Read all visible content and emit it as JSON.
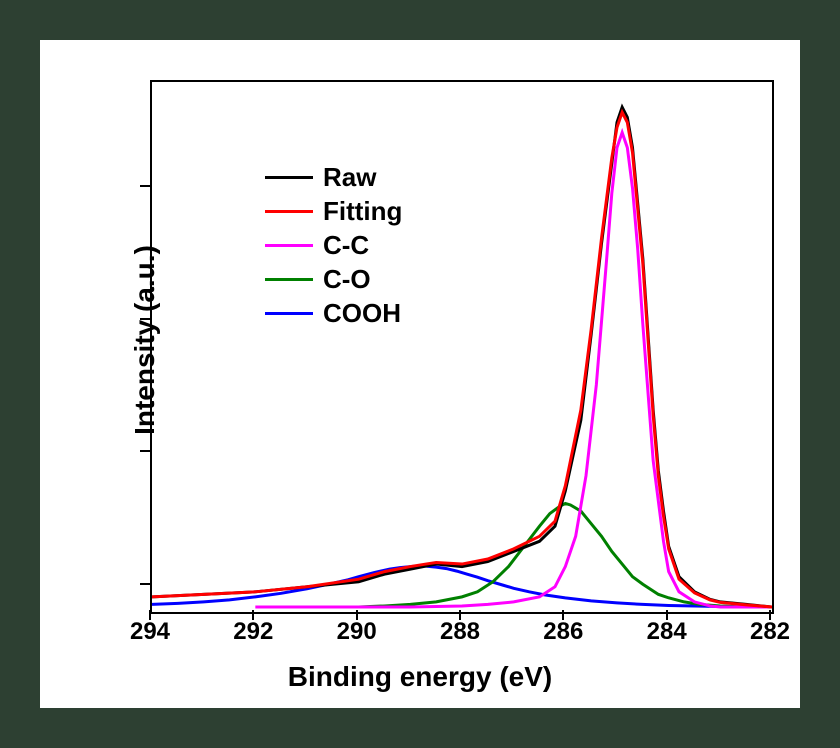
{
  "chart": {
    "type": "line",
    "background_color": "#ffffff",
    "page_background": "#2d4032",
    "xlabel": "Binding energy (eV)",
    "ylabel": "Intensity (a.u.)",
    "label_fontsize": 28,
    "label_fontweight": "bold",
    "tick_fontsize": 24,
    "tick_fontweight": "bold",
    "xlim": [
      294,
      282
    ],
    "xtick_step": 2,
    "xticks": [
      294,
      292,
      290,
      288,
      286,
      284,
      282
    ],
    "ylim": [
      0,
      1.05
    ],
    "yticks_relative": [
      0.05,
      0.3,
      0.55,
      0.8
    ],
    "x_axis_reversed": true,
    "border_color": "#000000",
    "border_width": 2,
    "line_width": 3,
    "legend": {
      "position": "upper-left-inset",
      "fontsize": 26,
      "fontweight": "bold",
      "items": [
        {
          "label": "Raw",
          "color": "#000000"
        },
        {
          "label": "Fitting",
          "color": "#ff0000"
        },
        {
          "label": "C-C",
          "color": "#ff00ff"
        },
        {
          "label": "C-O",
          "color": "#008000"
        },
        {
          "label": "COOH",
          "color": "#0000ff"
        }
      ]
    },
    "series": {
      "raw": {
        "color": "#000000",
        "x": [
          294,
          293,
          292,
          291,
          290,
          289.5,
          289,
          288.5,
          288,
          287.5,
          287,
          286.5,
          286.2,
          286,
          285.7,
          285.5,
          285.3,
          285.1,
          285,
          284.9,
          284.8,
          284.7,
          284.5,
          284.3,
          284.2,
          284.1,
          284,
          283.8,
          283.5,
          283.2,
          283,
          282.5,
          282
        ],
        "y": [
          0.03,
          0.035,
          0.04,
          0.05,
          0.06,
          0.075,
          0.085,
          0.095,
          0.09,
          0.1,
          0.12,
          0.14,
          0.17,
          0.24,
          0.38,
          0.55,
          0.73,
          0.89,
          0.97,
          1.0,
          0.98,
          0.92,
          0.7,
          0.4,
          0.28,
          0.2,
          0.13,
          0.07,
          0.04,
          0.025,
          0.02,
          0.015,
          0.01
        ]
      },
      "fitting": {
        "color": "#ff0000",
        "x": [
          294,
          293,
          292,
          291,
          290,
          289.5,
          289,
          288.7,
          288.5,
          288,
          287.5,
          287,
          286.5,
          286.2,
          286,
          285.7,
          285.5,
          285.3,
          285.1,
          285,
          284.9,
          284.8,
          284.7,
          284.5,
          284.3,
          284.2,
          284.1,
          284,
          283.8,
          283.5,
          283.2,
          283,
          282.5,
          282
        ],
        "y": [
          0.03,
          0.035,
          0.04,
          0.05,
          0.065,
          0.08,
          0.09,
          0.095,
          0.098,
          0.095,
          0.105,
          0.125,
          0.15,
          0.18,
          0.25,
          0.4,
          0.56,
          0.74,
          0.9,
          0.96,
          0.99,
          0.97,
          0.91,
          0.69,
          0.39,
          0.27,
          0.19,
          0.125,
          0.065,
          0.038,
          0.024,
          0.019,
          0.014,
          0.01
        ]
      },
      "cc": {
        "color": "#ff00ff",
        "peak_center": 284.9,
        "x": [
          292,
          291,
          290,
          289,
          288,
          287.5,
          287,
          286.5,
          286.2,
          286,
          285.8,
          285.6,
          285.4,
          285.2,
          285.1,
          285.0,
          284.9,
          284.8,
          284.7,
          284.6,
          284.5,
          284.3,
          284.1,
          284.0,
          283.8,
          283.5,
          283.2,
          283,
          282.5,
          282
        ],
        "y": [
          0.01,
          0.01,
          0.01,
          0.01,
          0.012,
          0.015,
          0.02,
          0.03,
          0.05,
          0.09,
          0.15,
          0.27,
          0.45,
          0.7,
          0.83,
          0.92,
          0.95,
          0.92,
          0.84,
          0.72,
          0.57,
          0.3,
          0.14,
          0.08,
          0.04,
          0.02,
          0.012,
          0.01,
          0.01,
          0.01
        ]
      },
      "co": {
        "color": "#008000",
        "peak_center": 286.0,
        "x": [
          290,
          289.5,
          289,
          288.5,
          288,
          287.7,
          287.4,
          287.1,
          286.8,
          286.5,
          286.3,
          286.1,
          286.0,
          285.9,
          285.7,
          285.5,
          285.3,
          285.1,
          284.9,
          284.7,
          284.5,
          284.2,
          284,
          283.7,
          283.4,
          283,
          282.5,
          282
        ],
        "y": [
          0.01,
          0.012,
          0.015,
          0.02,
          0.03,
          0.04,
          0.06,
          0.09,
          0.13,
          0.17,
          0.195,
          0.21,
          0.215,
          0.212,
          0.2,
          0.175,
          0.15,
          0.12,
          0.095,
          0.07,
          0.055,
          0.035,
          0.028,
          0.02,
          0.015,
          0.012,
          0.01,
          0.01
        ]
      },
      "cooh": {
        "color": "#0000ff",
        "peak_center": 288.7,
        "x": [
          294,
          293.5,
          293,
          292.5,
          292,
          291.5,
          291,
          290.5,
          290.2,
          290,
          289.7,
          289.4,
          289.2,
          289,
          288.9,
          288.8,
          288.7,
          288.6,
          288.5,
          288.3,
          288.1,
          287.9,
          287.7,
          287.5,
          287.2,
          287,
          286.7,
          286.4,
          286,
          285.5,
          285,
          284.5,
          284,
          283.5,
          283,
          282.5,
          282
        ],
        "y": [
          0.015,
          0.017,
          0.02,
          0.024,
          0.03,
          0.037,
          0.046,
          0.057,
          0.064,
          0.07,
          0.078,
          0.085,
          0.088,
          0.09,
          0.091,
          0.091,
          0.091,
          0.09,
          0.089,
          0.086,
          0.081,
          0.075,
          0.069,
          0.062,
          0.053,
          0.047,
          0.04,
          0.034,
          0.028,
          0.022,
          0.018,
          0.015,
          0.013,
          0.012,
          0.011,
          0.01,
          0.01
        ]
      }
    }
  }
}
